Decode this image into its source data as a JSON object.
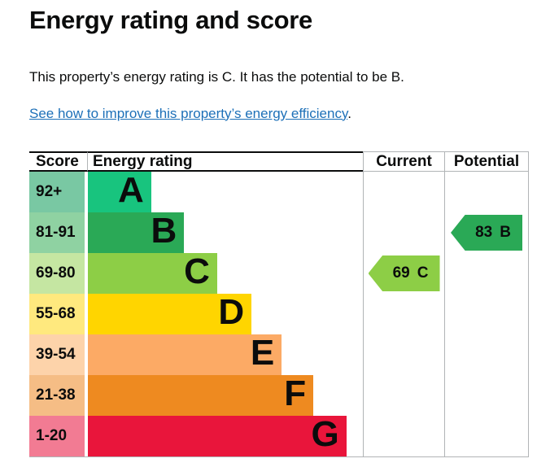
{
  "page": {
    "title": "Energy rating and score",
    "summary": "This property’s energy rating is C. It has the potential to be B.",
    "link_text": "See how to improve this property’s energy efficiency",
    "link_suffix": "."
  },
  "colors": {
    "text": "#0b0c0c",
    "link": "#1d70b8",
    "grid_border": "#b1b4b6",
    "header_border": "#0b0c0c"
  },
  "table": {
    "headers": {
      "score": "Score",
      "rating": "Energy rating",
      "current": "Current",
      "potential": "Potential"
    },
    "bands": [
      {
        "score": "92+",
        "letter": "A",
        "color": "#18c47e",
        "light": "#79c8a3",
        "width": "23%"
      },
      {
        "score": "81-91",
        "letter": "B",
        "color": "#2aa956",
        "light": "#8fd2a2",
        "width": "35%"
      },
      {
        "score": "69-80",
        "letter": "C",
        "color": "#8dce46",
        "light": "#c5e6a2",
        "width": "47%"
      },
      {
        "score": "55-68",
        "letter": "D",
        "color": "#ffd500",
        "light": "#ffe97e",
        "width": "59.5%"
      },
      {
        "score": "39-54",
        "letter": "E",
        "color": "#fcaa65",
        "light": "#fdd3aa",
        "width": "70.5%"
      },
      {
        "score": "21-38",
        "letter": "F",
        "color": "#ee8a20",
        "light": "#f5bd85",
        "width": "82%"
      },
      {
        "score": "1-20",
        "letter": "G",
        "color": "#e9153b",
        "light": "#f27b93",
        "width": "94%"
      }
    ],
    "current": {
      "value": "69",
      "letter": "C",
      "color": "#8dce46",
      "band_row": "C"
    },
    "potential": {
      "value": "83",
      "letter": "B",
      "color": "#2aa956",
      "band_row": "B"
    }
  },
  "chart_data": {
    "type": "bar",
    "title": "Energy rating and score",
    "columns": [
      "Score",
      "Energy rating",
      "Current",
      "Potential"
    ],
    "categories": [
      "A",
      "B",
      "C",
      "D",
      "E",
      "F",
      "G"
    ],
    "score_ranges": [
      "92+",
      "81-91",
      "69-80",
      "55-68",
      "39-54",
      "21-38",
      "1-20"
    ],
    "bar_widths_pct": [
      23,
      35,
      47,
      59.5,
      70.5,
      82,
      94
    ],
    "band_colors": [
      "#18c47e",
      "#2aa956",
      "#8dce46",
      "#ffd500",
      "#fcaa65",
      "#ee8a20",
      "#e9153b"
    ],
    "current": {
      "score": 69,
      "rating": "C"
    },
    "potential": {
      "score": 83,
      "rating": "B"
    },
    "legend_position": "none",
    "grid": false
  }
}
